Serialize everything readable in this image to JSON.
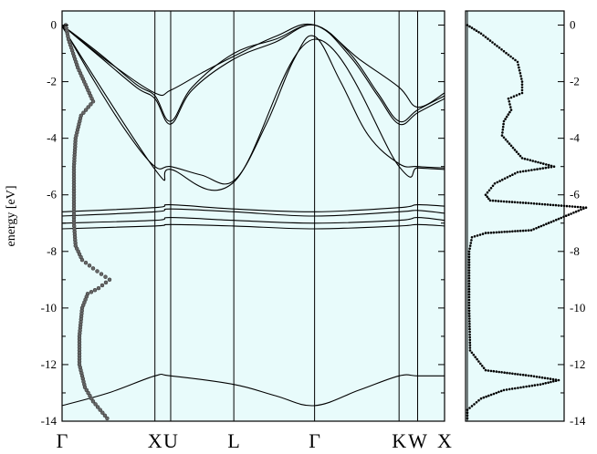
{
  "chart_data": {
    "type": "line",
    "ylabel": "energy [eV]",
    "ylim": [
      -14,
      0.5
    ],
    "y_ticks": [
      0,
      -2,
      -4,
      -6,
      -8,
      -10,
      -12,
      -14
    ],
    "y_tick_labels": [
      "0",
      "-2",
      "-4",
      "-6",
      "-8",
      "-10",
      "-12",
      "-14"
    ],
    "background_color": "#e8fbfb",
    "line_color": "#000000",
    "kpoints": [
      {
        "label": "Γ",
        "x": 0
      },
      {
        "label": "X",
        "x": 1.0
      },
      {
        "label": "U",
        "x": 1.17
      },
      {
        "label": "L",
        "x": 1.85
      },
      {
        "label": "Γ",
        "x": 2.72
      },
      {
        "label": "K",
        "x": 3.63
      },
      {
        "label": "W",
        "x": 3.83
      },
      {
        "label": "X",
        "x": 4.12
      }
    ],
    "bands": [
      {
        "name": "b1",
        "points": [
          [
            0,
            -13.45
          ],
          [
            0.5,
            -13.0
          ],
          [
            1.0,
            -12.4
          ],
          [
            1.17,
            -12.4
          ],
          [
            1.85,
            -12.7
          ],
          [
            2.3,
            -13.1
          ],
          [
            2.72,
            -13.45
          ],
          [
            3.2,
            -12.9
          ],
          [
            3.63,
            -12.4
          ],
          [
            3.83,
            -12.4
          ],
          [
            4.12,
            -12.4
          ]
        ]
      },
      {
        "name": "b2",
        "points": [
          [
            0,
            -7.2
          ],
          [
            1.0,
            -7.1
          ],
          [
            1.17,
            -7.05
          ],
          [
            1.85,
            -7.1
          ],
          [
            2.72,
            -7.2
          ],
          [
            3.63,
            -7.1
          ],
          [
            3.83,
            -7.05
          ],
          [
            4.12,
            -7.1
          ]
        ]
      },
      {
        "name": "b3",
        "points": [
          [
            0,
            -7.0
          ],
          [
            1.0,
            -6.9
          ],
          [
            1.17,
            -6.8
          ],
          [
            1.85,
            -6.9
          ],
          [
            2.72,
            -7.0
          ],
          [
            3.63,
            -6.9
          ],
          [
            3.83,
            -6.8
          ],
          [
            4.12,
            -6.9
          ]
        ]
      },
      {
        "name": "b4",
        "points": [
          [
            0,
            -6.75
          ],
          [
            1.0,
            -6.6
          ],
          [
            1.17,
            -6.5
          ],
          [
            1.85,
            -6.6
          ],
          [
            2.72,
            -6.75
          ],
          [
            3.63,
            -6.6
          ],
          [
            3.83,
            -6.55
          ],
          [
            4.12,
            -6.65
          ]
        ]
      },
      {
        "name": "b5",
        "points": [
          [
            0,
            -6.6
          ],
          [
            1.0,
            -6.45
          ],
          [
            1.17,
            -6.35
          ],
          [
            1.85,
            -6.5
          ],
          [
            2.72,
            -6.6
          ],
          [
            3.63,
            -6.45
          ],
          [
            3.83,
            -6.35
          ],
          [
            4.12,
            -6.4
          ]
        ]
      },
      {
        "name": "b6",
        "points": [
          [
            0,
            0
          ],
          [
            0.35,
            -2.0
          ],
          [
            0.7,
            -3.8
          ],
          [
            1.0,
            -5.0
          ],
          [
            1.17,
            -5.0
          ],
          [
            1.5,
            -5.3
          ],
          [
            1.85,
            -5.5
          ],
          [
            2.2,
            -3.5
          ],
          [
            2.5,
            -1.2
          ],
          [
            2.72,
            -0.4
          ],
          [
            3.0,
            -2.0
          ],
          [
            3.3,
            -3.9
          ],
          [
            3.63,
            -4.9
          ],
          [
            3.83,
            -5.0
          ],
          [
            4.12,
            -5.05
          ]
        ]
      },
      {
        "name": "b7",
        "points": [
          [
            0,
            -0.05
          ],
          [
            1.0,
            -5.1
          ],
          [
            1.17,
            -5.1
          ],
          [
            1.85,
            -5.55
          ],
          [
            2.72,
            -0.5
          ],
          [
            3.63,
            -5.0
          ],
          [
            3.83,
            -5.05
          ],
          [
            4.12,
            -5.1
          ]
        ]
      },
      {
        "name": "b8",
        "points": [
          [
            0,
            0
          ],
          [
            0.4,
            -1.0
          ],
          [
            0.8,
            -2.1
          ],
          [
            1.0,
            -2.5
          ],
          [
            1.17,
            -3.4
          ],
          [
            1.4,
            -2.2
          ],
          [
            1.85,
            -1.0
          ],
          [
            2.3,
            -0.5
          ],
          [
            2.72,
            0
          ],
          [
            3.1,
            -1.0
          ],
          [
            3.4,
            -2.4
          ],
          [
            3.63,
            -3.4
          ],
          [
            3.83,
            -3.0
          ],
          [
            4.12,
            -2.5
          ]
        ]
      },
      {
        "name": "b9",
        "points": [
          [
            0,
            0
          ],
          [
            0.4,
            -1.1
          ],
          [
            0.8,
            -2.2
          ],
          [
            1.0,
            -2.6
          ],
          [
            1.17,
            -3.5
          ],
          [
            1.4,
            -2.3
          ],
          [
            1.85,
            -1.2
          ],
          [
            2.3,
            -0.6
          ],
          [
            2.72,
            0
          ],
          [
            3.1,
            -1.1
          ],
          [
            3.4,
            -2.5
          ],
          [
            3.63,
            -3.5
          ],
          [
            3.83,
            -3.1
          ],
          [
            4.12,
            -2.6
          ]
        ]
      },
      {
        "name": "b10",
        "points": [
          [
            0,
            0
          ],
          [
            0.5,
            -1.3
          ],
          [
            1.0,
            -2.4
          ],
          [
            1.17,
            -2.3
          ],
          [
            1.5,
            -1.7
          ],
          [
            1.85,
            -1.1
          ],
          [
            2.3,
            -0.4
          ],
          [
            2.72,
            0
          ],
          [
            3.2,
            -1.2
          ],
          [
            3.63,
            -2.2
          ],
          [
            3.83,
            -2.9
          ],
          [
            4.12,
            -2.4
          ]
        ]
      }
    ],
    "left_dos": [
      [
        0.0,
        0.0
      ],
      [
        0.05,
        -0.5
      ],
      [
        0.22,
        -1.5
      ],
      [
        0.5,
        -2.7
      ],
      [
        0.28,
        -3.2
      ],
      [
        0.18,
        -4.0
      ],
      [
        0.15,
        -5.0
      ],
      [
        0.15,
        -6.0
      ],
      [
        0.15,
        -7.0
      ],
      [
        0.18,
        -7.8
      ],
      [
        0.3,
        -8.3
      ],
      [
        0.5,
        -8.6
      ],
      [
        0.8,
        -9.0
      ],
      [
        0.6,
        -9.3
      ],
      [
        0.4,
        -9.5
      ],
      [
        0.3,
        -10.0
      ],
      [
        0.25,
        -11.0
      ],
      [
        0.25,
        -12.0
      ],
      [
        0.35,
        -12.8
      ],
      [
        0.5,
        -13.3
      ],
      [
        0.8,
        -14.0
      ]
    ],
    "right_dos": [
      [
        0.0,
        0.0
      ],
      [
        0.15,
        -0.3
      ],
      [
        0.35,
        -0.8
      ],
      [
        0.55,
        -1.3
      ],
      [
        0.6,
        -2.0
      ],
      [
        0.6,
        -2.4
      ],
      [
        0.45,
        -2.6
      ],
      [
        0.48,
        -3.0
      ],
      [
        0.4,
        -3.4
      ],
      [
        0.38,
        -3.9
      ],
      [
        0.6,
        -4.7
      ],
      [
        0.95,
        -5.0
      ],
      [
        0.55,
        -5.2
      ],
      [
        0.3,
        -5.6
      ],
      [
        0.2,
        -6.0
      ],
      [
        0.25,
        -6.2
      ],
      [
        0.7,
        -6.3
      ],
      [
        1.3,
        -6.45
      ],
      [
        0.7,
        -7.25
      ],
      [
        0.2,
        -7.35
      ],
      [
        0.05,
        -7.5
      ],
      [
        0.02,
        -8.0
      ],
      [
        0.02,
        -10.0
      ],
      [
        0.03,
        -11.5
      ],
      [
        0.2,
        -12.2
      ],
      [
        0.7,
        -12.4
      ],
      [
        1.0,
        -12.55
      ],
      [
        0.8,
        -12.7
      ],
      [
        0.4,
        -12.9
      ],
      [
        0.15,
        -13.2
      ],
      [
        0.0,
        -13.6
      ],
      [
        0.0,
        -14.0
      ]
    ]
  }
}
